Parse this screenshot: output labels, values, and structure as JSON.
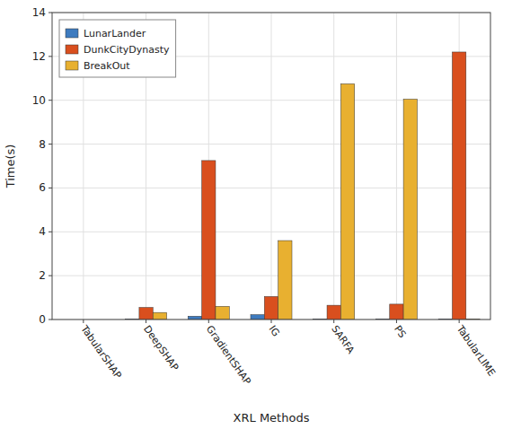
{
  "chart_data": {
    "type": "bar",
    "categories": [
      "TabularSHAP",
      "DeepSHAP",
      "GradientSHAP",
      "IG",
      "SARFA",
      "PS",
      "TabularLIME"
    ],
    "series": [
      {
        "name": "LunarLander",
        "color": "#3e7bbf",
        "values": [
          0.0,
          0.02,
          0.15,
          0.22,
          0.02,
          0.02,
          0.02
        ]
      },
      {
        "name": "DunkCityDynasty",
        "color": "#d94f1e",
        "values": [
          0.0,
          0.55,
          7.25,
          1.05,
          0.65,
          0.7,
          12.2
        ]
      },
      {
        "name": "BreakOut",
        "color": "#e8b030",
        "values": [
          0.0,
          0.32,
          0.6,
          3.6,
          10.75,
          10.05,
          0.02
        ]
      }
    ],
    "xlabel": "XRL Methods",
    "ylabel": "Time(s)",
    "ylim": [
      0,
      14
    ],
    "yticks": [
      0,
      2,
      4,
      6,
      8,
      10,
      12,
      14
    ],
    "grid": true,
    "legend": "upper left"
  }
}
